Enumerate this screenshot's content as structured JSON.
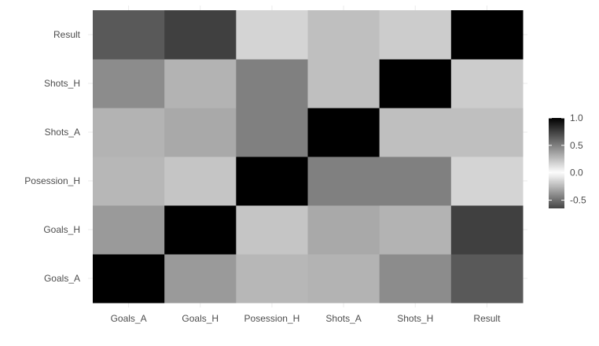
{
  "chart_data": {
    "type": "heatmap",
    "title": "",
    "xlabel": "",
    "ylabel": "",
    "x_categories": [
      "Goals_A",
      "Goals_H",
      "Posession_H",
      "Shots_A",
      "Shots_H",
      "Result"
    ],
    "y_categories": [
      "Goals_A",
      "Goals_H",
      "Posession_H",
      "Shots_A",
      "Shots_H",
      "Result"
    ],
    "values": [
      [
        1.0,
        -0.35,
        -0.25,
        0.3,
        -0.4,
        0.65
      ],
      [
        -0.35,
        1.0,
        -0.2,
        -0.3,
        0.3,
        0.75
      ],
      [
        -0.25,
        -0.2,
        1.0,
        0.5,
        0.5,
        -0.15
      ],
      [
        0.3,
        -0.3,
        0.5,
        1.0,
        0.25,
        0.25
      ],
      [
        -0.4,
        0.3,
        0.5,
        0.25,
        1.0,
        0.2
      ],
      [
        0.65,
        0.75,
        -0.15,
        0.25,
        0.2,
        1.0
      ]
    ],
    "color_scale": {
      "low_color": "#444444",
      "mid_color": "#ffffff",
      "high_color": "#000000",
      "limits": [
        -0.65,
        1.0
      ]
    },
    "legend": {
      "position": "right",
      "ticks": [
        1.0,
        0.5,
        0.0,
        -0.5
      ],
      "tick_labels": [
        "1.0",
        "0.5",
        "0.0",
        "-0.5"
      ]
    },
    "grid": true
  }
}
